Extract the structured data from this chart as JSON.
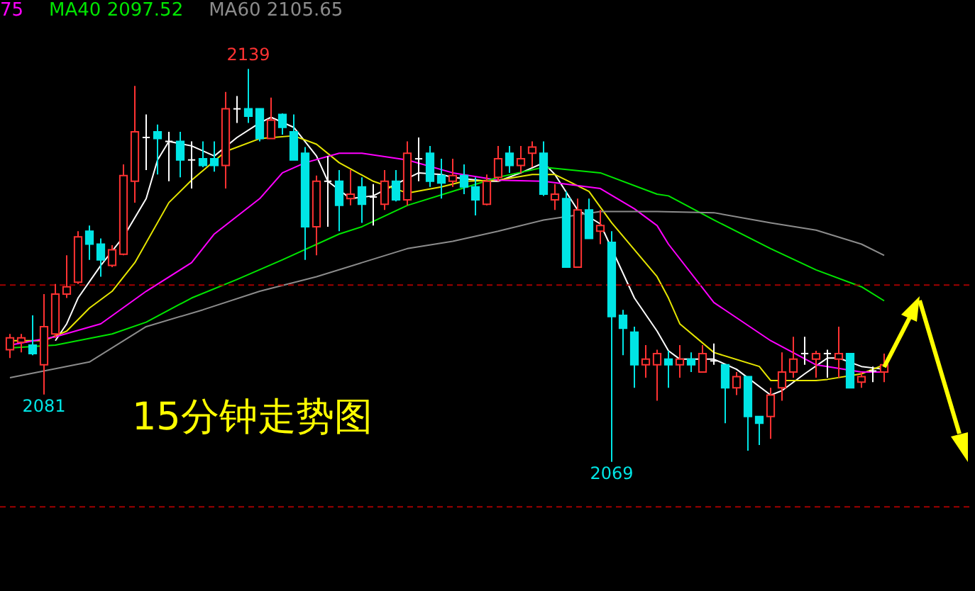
{
  "chart_data": {
    "type": "candlestick",
    "legend": "top left",
    "tick_labels": false,
    "categories": [
      null,
      null,
      null,
      null,
      null,
      null,
      null,
      null,
      null,
      null,
      null,
      null,
      null,
      null,
      null,
      null,
      null,
      null,
      null,
      null,
      null,
      null,
      null,
      null,
      null,
      null,
      null,
      null,
      null,
      null,
      null,
      null,
      null,
      null,
      null,
      null,
      null,
      null,
      null,
      null,
      null,
      null,
      null,
      null,
      null,
      null,
      null,
      null,
      null,
      null,
      null,
      null,
      null,
      null,
      null,
      null,
      null,
      null,
      null,
      null,
      null,
      null,
      null,
      null,
      null,
      null,
      null,
      null,
      null,
      null,
      null,
      null,
      null,
      null,
      null,
      null,
      null,
      null
    ],
    "ohlc": [
      [
        2089.0,
        2091.8,
        2087.5,
        2091.1
      ],
      [
        2090.3,
        2091.8,
        2088.5,
        2091.1
      ],
      [
        2089.8,
        2095.1,
        2088.0,
        2088.3
      ],
      [
        2086.3,
        2098.9,
        2081,
        2093.1
      ],
      [
        2091.8,
        2100.7,
        2091.1,
        2098.9
      ],
      [
        2098.9,
        2105.8,
        2098.2,
        2100.2
      ],
      [
        2101.0,
        2110.1,
        2100.7,
        2109.1
      ],
      [
        2110.1,
        2111.1,
        2105.0,
        2107.8
      ],
      [
        2107.8,
        2108.8,
        2102.0,
        2105.0
      ],
      [
        2104.0,
        2107.6,
        2103.7,
        2106.8
      ],
      [
        2106.0,
        2122.0,
        2105.8,
        2120.0
      ],
      [
        2119.0,
        2136.0,
        2115.2,
        2127.8
      ],
      [
        2126.8,
        2130.9,
        2121.0,
        2126.8
      ],
      [
        2127.8,
        2129.1,
        2120.2,
        2126.6
      ],
      [
        2126.1,
        2127.8,
        2119.0,
        2126.1
      ],
      [
        2126.1,
        2127.8,
        2119.7,
        2122.8
      ],
      [
        2122.8,
        2126.1,
        2117.7,
        2122.8
      ],
      [
        2123.0,
        2126.1,
        2121.5,
        2121.8
      ],
      [
        2123.0,
        2126.1,
        2120.7,
        2121.8
      ],
      [
        2121.8,
        2134.9,
        2117.7,
        2131.9
      ],
      [
        2131.9,
        2134.2,
        2129.4,
        2131.9
      ],
      [
        2131.9,
        2139,
        2129.4,
        2130.6
      ],
      [
        2131.9,
        2131.9,
        2126.1,
        2126.6
      ],
      [
        2126.6,
        2133.9,
        2126.6,
        2129.9
      ],
      [
        2130.9,
        2131.1,
        2127.3,
        2128.6
      ],
      [
        2127.8,
        2130.9,
        2122.8,
        2122.8
      ],
      [
        2124.0,
        2125.1,
        2105.0,
        2110.9
      ],
      [
        2110.9,
        2120.0,
        2105.8,
        2119.0
      ],
      [
        2119.0,
        2123.5,
        2110.9,
        2119.0
      ],
      [
        2119.0,
        2121.0,
        2110.1,
        2114.7
      ],
      [
        2115.9,
        2121.0,
        2114.7,
        2116.7
      ],
      [
        2118.0,
        2119.7,
        2111.6,
        2114.9
      ],
      [
        2116.2,
        2118.5,
        2111.1,
        2116.2
      ],
      [
        2114.9,
        2121.0,
        2113.9,
        2119.0
      ],
      [
        2119.0,
        2121.0,
        2115.4,
        2115.7
      ],
      [
        2115.7,
        2126.1,
        2114.7,
        2124.0
      ],
      [
        2123.0,
        2126.8,
        2119.0,
        2123.0
      ],
      [
        2124.0,
        2125.3,
        2118.0,
        2119.0
      ],
      [
        2120.0,
        2123.0,
        2115.9,
        2118.7
      ],
      [
        2119.0,
        2123.0,
        2118.0,
        2120.0
      ],
      [
        2120.0,
        2122.0,
        2116.7,
        2118.0
      ],
      [
        2118.0,
        2119.7,
        2112.9,
        2115.7
      ],
      [
        2114.9,
        2120.2,
        2114.7,
        2119.0
      ],
      [
        2119.7,
        2125.3,
        2119.0,
        2123.0
      ],
      [
        2124.0,
        2125.3,
        2120.5,
        2121.8
      ],
      [
        2121.8,
        2125.3,
        2120.5,
        2123.0
      ],
      [
        2124.0,
        2126.1,
        2121.5,
        2125.1
      ],
      [
        2124.0,
        2126.1,
        2116.4,
        2116.7
      ],
      [
        2115.7,
        2118.5,
        2113.9,
        2116.7
      ],
      [
        2115.9,
        2117.2,
        2103.7,
        2103.7
      ],
      [
        2103.7,
        2115.9,
        2103.7,
        2113.9
      ],
      [
        2113.9,
        2115.9,
        2108.8,
        2108.8
      ],
      [
        2110.1,
        2113.9,
        2107.8,
        2111.1
      ],
      [
        2108.1,
        2110.1,
        2069,
        2094.9
      ],
      [
        2095.1,
        2096.1,
        2088.0,
        2092.8
      ],
      [
        2092.1,
        2093.1,
        2082.2,
        2086.3
      ],
      [
        2086.3,
        2089.8,
        2084.0,
        2087.3
      ],
      [
        2086.3,
        2089.0,
        2079.9,
        2088.3
      ],
      [
        2087.3,
        2088.8,
        2082.2,
        2086.3
      ],
      [
        2086.3,
        2089.8,
        2084.0,
        2087.3
      ],
      [
        2087.3,
        2088.5,
        2085.0,
        2086.3
      ],
      [
        2085.0,
        2089.8,
        2085.0,
        2088.3
      ],
      [
        2087.0,
        2090.1,
        2086.3,
        2087.0
      ],
      [
        2086.3,
        2086.3,
        2075.9,
        2082.2
      ],
      [
        2082.2,
        2085.0,
        2080.9,
        2084.2
      ],
      [
        2084.2,
        2084.2,
        2071.0,
        2077.1
      ],
      [
        2077.1,
        2077.1,
        2072.0,
        2075.9
      ],
      [
        2077.1,
        2082.2,
        2073.1,
        2080.9
      ],
      [
        2082.2,
        2088.5,
        2079.9,
        2085.0
      ],
      [
        2085.0,
        2091.3,
        2084.0,
        2087.3
      ],
      [
        2088.3,
        2091.3,
        2086.3,
        2088.3
      ],
      [
        2087.3,
        2088.8,
        2084.0,
        2088.3
      ],
      [
        2088.3,
        2089.0,
        2084.0,
        2088.3
      ],
      [
        2087.3,
        2093.1,
        2084.0,
        2088.3
      ],
      [
        2088.3,
        2088.3,
        2082.2,
        2082.2
      ],
      [
        2083.2,
        2085.0,
        2082.2,
        2084.2
      ],
      [
        2085.2,
        2086.0,
        2083.2,
        2085.2
      ],
      [
        2085.0,
        2088.3,
        2083.2,
        2086.3
      ]
    ],
    "colors": [
      "#ff3232",
      "#ff3232",
      "#00e5e5",
      "#ff3232",
      "#ff3232",
      "#ff3232",
      "#ff3232",
      "#00e5e5",
      "#00e5e5",
      "#ff3232",
      "#ff3232",
      "#ff3232",
      "#ffffff",
      "#00e5e5",
      "#ffffff",
      "#00e5e5",
      "#ffffff",
      "#00e5e5",
      "#00e5e5",
      "#ff3232",
      "#ffffff",
      "#00e5e5",
      "#00e5e5",
      "#ff3232",
      "#00e5e5",
      "#00e5e5",
      "#00e5e5",
      "#ff3232",
      "#ffffff",
      "#00e5e5",
      "#ff3232",
      "#00e5e5",
      "#ffffff",
      "#ff3232",
      "#00e5e5",
      "#ff3232",
      "#ffffff",
      "#00e5e5",
      "#00e5e5",
      "#ff3232",
      "#00e5e5",
      "#00e5e5",
      "#ff3232",
      "#ff3232",
      "#00e5e5",
      "#ff3232",
      "#ff3232",
      "#00e5e5",
      "#ff3232",
      "#00e5e5",
      "#ff3232",
      "#00e5e5",
      "#ff3232",
      "#00e5e5",
      "#00e5e5",
      "#00e5e5",
      "#ff3232",
      "#ff3232",
      "#00e5e5",
      "#ff3232",
      "#00e5e5",
      "#ff3232",
      "#ffffff",
      "#00e5e5",
      "#ff3232",
      "#00e5e5",
      "#00e5e5",
      "#ff3232",
      "#ff3232",
      "#ff3232",
      "#ffffff",
      "#ff3232",
      "#ffffff",
      "#ff3232",
      "#00e5e5",
      "#ff3232",
      "#ffffff",
      "#ff3232"
    ],
    "series": [
      {
        "type": "line",
        "color": "#ffffff",
        "values": [
          null,
          null,
          null,
          null,
          2090.6,
          2093.6,
          2098.2,
          null,
          2104.0,
          null,
          2109.1,
          null,
          2115.9,
          2122.8,
          2126.1,
          null,
          2125.3,
          null,
          2123.5,
          null,
          2126.8,
          null,
          2129.4,
          2130.4,
          null,
          2128.6,
          null,
          2123.5,
          2119.0,
          null,
          2115.9,
          null,
          2116.4,
          null,
          2118.5,
          null,
          2120.5,
          null,
          2120.2,
          2119.7,
          null,
          null,
          2119.0,
          2119.0,
          null,
          2120.5,
          null,
          2122.3,
          2120.2,
          null,
          2113.9,
          null,
          2111.4,
          null,
          null,
          2098.2,
          null,
          2092.3,
          2088.8,
          2087.3,
          null,
          null,
          2087.3,
          null,
          2085.5,
          null,
          null,
          2080.9,
          2081.7,
          null,
          2084.7,
          null,
          2087.5,
          2087.5,
          null,
          2086.0,
          null,
          2085.5
        ]
      },
      {
        "type": "line",
        "color": "#e6e600",
        "values": [
          2090.6,
          null,
          null,
          2090.6,
          null,
          2092.3,
          null,
          2096.4,
          null,
          2099.4,
          null,
          2104.5,
          null,
          null,
          2115.2,
          null,
          2119.2,
          null,
          null,
          2124.3,
          null,
          null,
          2126.6,
          null,
          null,
          2127.1,
          null,
          2125.6,
          null,
          2122.3,
          null,
          null,
          2119.0,
          null,
          null,
          2116.9,
          null,
          null,
          2118.0,
          null,
          2119.0,
          null,
          null,
          2119.2,
          null,
          null,
          2120.2,
          null,
          2120.2,
          null,
          null,
          2117.2,
          null,
          2111.6,
          null,
          null,
          null,
          2102.0,
          2098.2,
          2093.6,
          null,
          null,
          2088.5,
          null,
          null,
          null,
          2086.0,
          2083.5,
          null,
          null,
          null,
          2083.5,
          2083.7,
          null,
          null,
          2084.7,
          null,
          2086.3
        ]
      },
      {
        "type": "line",
        "name": "75",
        "color": "#ff00ff",
        "values": [
          2089.8,
          null,
          null,
          null,
          2091.3,
          null,
          null,
          null,
          2093.6,
          null,
          null,
          null,
          2099.4,
          null,
          null,
          null,
          2104.5,
          null,
          2109.6,
          null,
          null,
          null,
          2115.9,
          null,
          2120.5,
          null,
          2122.3,
          null,
          null,
          2124.0,
          null,
          2124.0,
          null,
          null,
          null,
          2122.8,
          null,
          null,
          null,
          2120.5,
          null,
          null,
          null,
          2119.2,
          null,
          null,
          null,
          2119.0,
          null,
          null,
          null,
          null,
          2117.7,
          null,
          null,
          2114.1,
          null,
          2111.1,
          2107.8,
          null,
          null,
          null,
          2097.4,
          null,
          null,
          null,
          null,
          2090.6,
          null,
          null,
          null,
          2086.3,
          null,
          null,
          null,
          2085.0,
          null,
          2085.0
        ]
      },
      {
        "type": "line",
        "name": "MA40 2097.52",
        "color": "#00e600",
        "values": [
          2089.3,
          null,
          null,
          null,
          2089.8,
          null,
          null,
          null,
          null,
          2091.8,
          null,
          null,
          2093.9,
          null,
          null,
          null,
          2098.2,
          null,
          null,
          null,
          2101.5,
          null,
          null,
          null,
          2105.0,
          null,
          null,
          null,
          null,
          2109.6,
          null,
          2110.9,
          null,
          null,
          null,
          2114.7,
          null,
          null,
          null,
          2117.2,
          null,
          null,
          null,
          2119.7,
          null,
          null,
          null,
          2121.5,
          null,
          null,
          null,
          null,
          2120.5,
          null,
          null,
          null,
          null,
          2116.7,
          2116.4,
          null,
          null,
          null,
          2112.1,
          null,
          null,
          null,
          null,
          2107.0,
          null,
          null,
          null,
          2103.2,
          null,
          null,
          null,
          2100.2,
          null,
          2097.7
        ]
      },
      {
        "type": "line",
        "name": "MA60 2105.65",
        "color": "#8c8c8c",
        "values": [
          2084.0,
          null,
          null,
          null,
          null,
          null,
          null,
          2086.8,
          null,
          null,
          null,
          null,
          2093.1,
          null,
          null,
          null,
          null,
          2096.1,
          null,
          null,
          null,
          null,
          2099.4,
          null,
          null,
          null,
          null,
          2102.0,
          null,
          null,
          null,
          2104.5,
          null,
          null,
          null,
          2107.0,
          null,
          null,
          null,
          2108.3,
          null,
          null,
          null,
          2110.1,
          null,
          null,
          null,
          2112.1,
          null,
          null,
          null,
          null,
          2113.6,
          null,
          null,
          null,
          null,
          2113.6,
          null,
          null,
          null,
          null,
          2113.4,
          null,
          null,
          null,
          null,
          2111.6,
          null,
          null,
          null,
          2110.3,
          null,
          null,
          null,
          2107.8,
          null,
          2105.8
        ]
      }
    ],
    "ylim": [
      2046,
      2147
    ],
    "ref_lines": [
      {
        "axis": "y",
        "value": 2100.5,
        "color": "#a00000",
        "line_style": "dashed"
      },
      {
        "axis": "y",
        "value": 2061,
        "color": "#a00000",
        "line_style": "dashed"
      }
    ],
    "annotations": [
      "15分钟走势图",
      {
        "text": "2139",
        "y": 2139
      },
      {
        "text": "2081",
        "y": 2081
      },
      {
        "text": "2069",
        "y": 2069
      }
    ]
  }
}
